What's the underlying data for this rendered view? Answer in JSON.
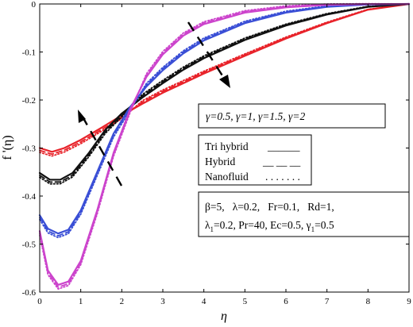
{
  "chart_data": {
    "type": "line",
    "xlabel": "η",
    "ylabel": "f '(η)",
    "xlim": [
      0,
      9
    ],
    "ylim": [
      -0.6,
      0
    ],
    "x_ticks": [
      0,
      1,
      2,
      3,
      4,
      5,
      6,
      7,
      8,
      9
    ],
    "y_ticks": [
      0,
      -0.1,
      -0.2,
      -0.3,
      -0.4,
      -0.5,
      -0.6
    ],
    "x_tick_labels": [
      "0",
      "1",
      "2",
      "3",
      "4",
      "5",
      "6",
      "7",
      "8",
      "9"
    ],
    "y_tick_labels": [
      "0",
      "-0.1",
      "-0.2",
      "-0.3",
      "-0.4",
      "-0.5",
      "-0.6"
    ],
    "grid": false,
    "gammas": [
      {
        "color": "#e8232a",
        "points": [
          [
            0,
            -0.3
          ],
          [
            0.3,
            -0.308
          ],
          [
            0.6,
            -0.3
          ],
          [
            1,
            -0.283
          ],
          [
            1.5,
            -0.258
          ],
          [
            2,
            -0.232
          ],
          [
            2.5,
            -0.208
          ],
          [
            3,
            -0.185
          ],
          [
            3.5,
            -0.165
          ],
          [
            4,
            -0.145
          ],
          [
            5,
            -0.108
          ],
          [
            6,
            -0.072
          ],
          [
            7,
            -0.04
          ],
          [
            8,
            -0.012
          ],
          [
            9,
            0
          ]
        ]
      },
      {
        "color": "#111111",
        "points": [
          [
            0,
            -0.352
          ],
          [
            0.25,
            -0.366
          ],
          [
            0.5,
            -0.366
          ],
          [
            0.8,
            -0.352
          ],
          [
            1.2,
            -0.31
          ],
          [
            1.6,
            -0.262
          ],
          [
            2,
            -0.228
          ],
          [
            2.5,
            -0.195
          ],
          [
            3,
            -0.165
          ],
          [
            3.5,
            -0.137
          ],
          [
            4,
            -0.113
          ],
          [
            5,
            -0.075
          ],
          [
            6,
            -0.045
          ],
          [
            7,
            -0.022
          ],
          [
            8,
            -0.006
          ],
          [
            9,
            0
          ]
        ]
      },
      {
        "color": "#3a4fd6",
        "points": [
          [
            0,
            -0.44
          ],
          [
            0.2,
            -0.468
          ],
          [
            0.45,
            -0.478
          ],
          [
            0.7,
            -0.47
          ],
          [
            1,
            -0.43
          ],
          [
            1.4,
            -0.35
          ],
          [
            1.8,
            -0.27
          ],
          [
            2.2,
            -0.215
          ],
          [
            2.6,
            -0.172
          ],
          [
            3,
            -0.138
          ],
          [
            3.5,
            -0.103
          ],
          [
            4,
            -0.076
          ],
          [
            5,
            -0.04
          ],
          [
            6,
            -0.018
          ],
          [
            7,
            -0.006
          ],
          [
            8,
            -0.001
          ],
          [
            9,
            0
          ]
        ]
      },
      {
        "color": "#cc44cc",
        "points": [
          [
            0,
            -0.473
          ],
          [
            0.2,
            -0.555
          ],
          [
            0.45,
            -0.585
          ],
          [
            0.7,
            -0.578
          ],
          [
            1,
            -0.535
          ],
          [
            1.4,
            -0.43
          ],
          [
            1.8,
            -0.31
          ],
          [
            2.2,
            -0.22
          ],
          [
            2.6,
            -0.152
          ],
          [
            3,
            -0.105
          ],
          [
            3.5,
            -0.066
          ],
          [
            4,
            -0.042
          ],
          [
            5,
            -0.018
          ],
          [
            6,
            -0.007
          ],
          [
            7,
            -0.002
          ],
          [
            8,
            -0.0003
          ],
          [
            9,
            0
          ]
        ]
      }
    ],
    "series_styles": [
      {
        "dash": "",
        "offset": 0
      },
      {
        "dash": "7 4",
        "offset": -0.005
      },
      {
        "dash": "1.5 2.5",
        "offset": -0.009
      }
    ],
    "gamma_box": "γ=0.5, γ=1, γ=1.5, γ=2",
    "legend": [
      {
        "label": "Tri hybrid",
        "sample": "______"
      },
      {
        "label": "Hybrid",
        "sample": "__ __ __"
      },
      {
        "label": "Nanofluid",
        "sample": ". . . . . . ."
      }
    ],
    "params_line1": "β=5,   λ=0.2,   Fr=0.1,   Rd=1,",
    "params_line2_prefix": "λ",
    "params_line2_sub": "1",
    "params_line2_mid": "=0.2, Pr=40, Ec=0.5, γ",
    "params_line2_sub2": "1",
    "params_line2_end": "=0.5"
  }
}
